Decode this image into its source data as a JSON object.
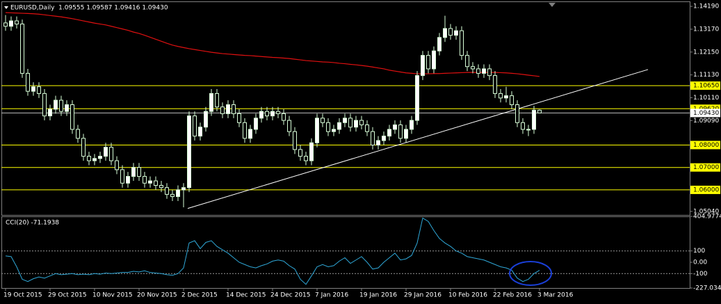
{
  "chart_data": [
    {
      "type": "candlestick",
      "title": "EURUSD,Daily  1.09555 1.09587 1.09416 1.09430",
      "categories": [
        "19 Oct 2015",
        null,
        null,
        null,
        null,
        null,
        null,
        null,
        "29 Oct 2015",
        null,
        null,
        null,
        null,
        null,
        null,
        null,
        "10 Nov 2015",
        null,
        null,
        null,
        null,
        null,
        null,
        null,
        "20 Nov 2015",
        null,
        null,
        null,
        null,
        null,
        null,
        null,
        "2 Dec 2015",
        null,
        null,
        null,
        null,
        null,
        null,
        null,
        "14 Dec 2015",
        null,
        null,
        null,
        null,
        null,
        null,
        null,
        "24 Dec 2015",
        null,
        null,
        null,
        null,
        null,
        null,
        null,
        "7 Jan 2016",
        null,
        null,
        null,
        null,
        null,
        null,
        null,
        "19 Jan 2016",
        null,
        null,
        null,
        null,
        null,
        null,
        null,
        "29 Jan 2016",
        null,
        null,
        null,
        null,
        null,
        null,
        null,
        "10 Feb 2016",
        null,
        null,
        null,
        null,
        null,
        null,
        null,
        "22 Feb 2016",
        null,
        null,
        null,
        null,
        null,
        null,
        null,
        "3 Mar 2016"
      ],
      "open": [
        1.1345,
        1.133,
        1.1354,
        1.134,
        1.112,
        1.104,
        1.106,
        1.103,
        1.093,
        1.096,
        1.1,
        1.095,
        1.098,
        1.087,
        1.083,
        1.075,
        1.073,
        1.074,
        1.075,
        1.079,
        1.073,
        1.069,
        1.063,
        1.066,
        1.07,
        1.066,
        1.063,
        1.064,
        1.062,
        1.061,
        1.058,
        1.057,
        1.06,
        1.061,
        1.093,
        1.084,
        1.088,
        1.095,
        1.103,
        1.097,
        1.094,
        1.098,
        1.094,
        1.09,
        1.083,
        1.087,
        1.092,
        1.095,
        1.093,
        1.095,
        1.094,
        1.091,
        1.086,
        1.078,
        1.075,
        1.073,
        1.081,
        1.092,
        1.09,
        1.086,
        1.087,
        1.09,
        1.092,
        1.088,
        1.091,
        1.089,
        1.086,
        1.08,
        1.082,
        1.084,
        1.087,
        1.089,
        1.083,
        1.087,
        1.091,
        1.111,
        1.12,
        1.114,
        1.122,
        1.128,
        1.132,
        1.129,
        1.131,
        1.12,
        1.115,
        1.114,
        1.112,
        1.114,
        1.111,
        1.103,
        1.101,
        1.102,
        1.098,
        1.09,
        1.087,
        1.087,
        1.09555
      ],
      "high": [
        1.138,
        1.1374,
        1.1374,
        1.136,
        1.114,
        1.108,
        1.108,
        1.105,
        1.098,
        1.102,
        1.102,
        1.1,
        1.1,
        1.089,
        1.085,
        1.077,
        1.076,
        1.077,
        1.081,
        1.081,
        1.075,
        1.071,
        1.068,
        1.072,
        1.072,
        1.068,
        1.066,
        1.066,
        1.064,
        1.063,
        1.06,
        1.062,
        1.063,
        1.095,
        1.095,
        1.09,
        1.097,
        1.105,
        1.105,
        1.099,
        1.1,
        1.1,
        1.096,
        1.092,
        1.089,
        1.094,
        1.097,
        1.097,
        1.097,
        1.097,
        1.096,
        1.093,
        1.088,
        1.08,
        1.077,
        1.083,
        1.094,
        1.094,
        1.092,
        1.089,
        1.092,
        1.094,
        1.094,
        1.093,
        1.093,
        1.091,
        1.088,
        1.084,
        1.086,
        1.089,
        1.091,
        1.091,
        1.089,
        1.093,
        1.113,
        1.122,
        1.122,
        1.124,
        1.13,
        1.1377,
        1.134,
        1.133,
        1.133,
        1.122,
        1.117,
        1.116,
        1.116,
        1.116,
        1.113,
        1.105,
        1.106,
        1.104,
        1.1,
        1.092,
        1.089,
        1.0975,
        1.09587
      ],
      "low": [
        1.131,
        1.131,
        1.132,
        1.11,
        1.102,
        1.102,
        1.101,
        1.091,
        1.091,
        1.094,
        1.093,
        1.093,
        1.085,
        1.081,
        1.073,
        1.071,
        1.071,
        1.072,
        1.073,
        1.071,
        1.067,
        1.061,
        1.061,
        1.064,
        1.064,
        1.061,
        1.061,
        1.06,
        1.059,
        1.056,
        1.055,
        1.055,
        1.0522,
        1.059,
        1.082,
        1.082,
        1.086,
        1.093,
        1.095,
        1.092,
        1.092,
        1.092,
        1.088,
        1.081,
        1.081,
        1.085,
        1.09,
        1.091,
        1.091,
        1.092,
        1.089,
        1.084,
        1.076,
        1.073,
        1.071,
        1.071,
        1.079,
        1.088,
        1.084,
        1.084,
        1.085,
        1.088,
        1.086,
        1.086,
        1.087,
        1.084,
        1.078,
        1.078,
        1.08,
        1.082,
        1.085,
        1.081,
        1.081,
        1.085,
        1.089,
        1.109,
        1.112,
        1.112,
        1.12,
        1.126,
        1.127,
        1.127,
        1.118,
        1.113,
        1.112,
        1.11,
        1.11,
        1.109,
        1.101,
        1.099,
        1.099,
        1.096,
        1.088,
        1.085,
        1.084,
        1.085,
        1.09416
      ],
      "close": [
        1.133,
        1.1354,
        1.134,
        1.112,
        1.104,
        1.106,
        1.103,
        1.093,
        1.096,
        1.1,
        1.095,
        1.098,
        1.087,
        1.083,
        1.075,
        1.073,
        1.074,
        1.075,
        1.079,
        1.073,
        1.069,
        1.063,
        1.066,
        1.07,
        1.066,
        1.063,
        1.064,
        1.062,
        1.061,
        1.058,
        1.057,
        1.06,
        1.061,
        1.093,
        1.084,
        1.088,
        1.095,
        1.103,
        1.097,
        1.094,
        1.098,
        1.094,
        1.09,
        1.083,
        1.087,
        1.092,
        1.095,
        1.093,
        1.095,
        1.094,
        1.091,
        1.086,
        1.078,
        1.075,
        1.073,
        1.081,
        1.092,
        1.09,
        1.086,
        1.087,
        1.09,
        1.092,
        1.088,
        1.091,
        1.089,
        1.086,
        1.08,
        1.082,
        1.084,
        1.087,
        1.089,
        1.083,
        1.087,
        1.091,
        1.111,
        1.12,
        1.114,
        1.122,
        1.128,
        1.132,
        1.129,
        1.131,
        1.12,
        1.115,
        1.114,
        1.112,
        1.114,
        1.111,
        1.103,
        1.101,
        1.102,
        1.098,
        1.09,
        1.087,
        1.087,
        1.09555,
        1.0943
      ],
      "bull_color": "#ffffff",
      "bear_color": "#000000",
      "wick_color": "#d8ffd8",
      "moving_average": {
        "color": "#e01010",
        "values": [
          1.1391,
          1.139,
          1.1389,
          1.1388,
          1.1387,
          1.1386,
          1.1384,
          1.1381,
          1.1378,
          1.1375,
          1.1372,
          1.1368,
          1.1364,
          1.1359,
          1.1354,
          1.1349,
          1.1344,
          1.134,
          1.1336,
          1.133,
          1.1324,
          1.1318,
          1.1312,
          1.1304,
          1.1298,
          1.129,
          1.1281,
          1.1272,
          1.1263,
          1.1254,
          1.1246,
          1.124,
          1.1235,
          1.123,
          1.1226,
          1.1222,
          1.1218,
          1.1214,
          1.1211,
          1.1208,
          1.1206,
          1.1204,
          1.1202,
          1.12,
          1.1199,
          1.1197,
          1.1195,
          1.1193,
          1.1191,
          1.119,
          1.1188,
          1.1186,
          1.1183,
          1.118,
          1.1177,
          1.1175,
          1.1173,
          1.1171,
          1.117,
          1.1168,
          1.1165,
          1.1163,
          1.116,
          1.1158,
          1.1155,
          1.1152,
          1.1148,
          1.1144,
          1.114,
          1.1134,
          1.113,
          1.1126,
          1.1122,
          1.112,
          1.1118,
          1.1118,
          1.1118,
          1.1119,
          1.1119,
          1.112,
          1.1121,
          1.1122,
          1.1123,
          1.1124,
          1.1124,
          1.1124,
          1.1124,
          1.1124,
          1.1124,
          1.1123,
          1.1122,
          1.112,
          1.1118,
          1.1115,
          1.1112,
          1.1109,
          1.1106
        ]
      },
      "trendline": {
        "color": "#ffffff",
        "x": [
          32.75,
          115.5
        ],
        "y": [
          1.0517,
          1.1137
        ]
      },
      "levels": [
        {
          "value": 1.1065,
          "label": "1.10650",
          "color": "#ffff00"
        },
        {
          "value": 1.0962,
          "label": "1.09620",
          "color": "#ffff00"
        },
        {
          "value": 1.08,
          "label": "1.08000",
          "color": "#ffff00"
        },
        {
          "value": 1.07,
          "label": "1.07000",
          "color": "#ffff00"
        },
        {
          "value": 1.06,
          "label": "1.06000",
          "color": "#ffff00"
        }
      ],
      "bid": {
        "value": 1.0943,
        "label": "1.09430",
        "color": "#c0c0c0"
      },
      "ylim": [
        1.0488,
        1.1441
      ],
      "yticks": [
        {
          "value": 1.1419,
          "label": "1.14190"
        },
        {
          "value": 1.1317,
          "label": "1.13170"
        },
        {
          "value": 1.1215,
          "label": "1.12150"
        },
        {
          "value": 1.1113,
          "label": "1.11130"
        },
        {
          "value": 1.1011,
          "label": "1.10110"
        },
        {
          "value": 1.0909,
          "label": "1.09090"
        },
        {
          "value": 1.0504,
          "label": "1.05040"
        }
      ],
      "grid": false
    },
    {
      "type": "line",
      "title": "CCI(20) -71.1938",
      "color": "#2fa8d8",
      "values": [
        56,
        50,
        -40,
        -150,
        -170,
        -145,
        -130,
        -140,
        -120,
        -100,
        -110,
        -105,
        -100,
        -110,
        -105,
        -110,
        -100,
        -105,
        -95,
        -100,
        -95,
        -90,
        -90,
        -80,
        -85,
        -75,
        -90,
        -95,
        -100,
        -110,
        -115,
        -100,
        -50,
        170,
        190,
        120,
        175,
        190,
        140,
        110,
        80,
        40,
        0,
        -20,
        -40,
        -50,
        -30,
        -15,
        10,
        20,
        10,
        -30,
        -60,
        -150,
        -195,
        -120,
        -40,
        -20,
        -40,
        -30,
        10,
        40,
        -10,
        20,
        50,
        0,
        -60,
        -50,
        0,
        40,
        80,
        20,
        30,
        60,
        170,
        390,
        360,
        280,
        210,
        170,
        140,
        100,
        80,
        50,
        40,
        30,
        20,
        0,
        -20,
        -40,
        -50,
        -70,
        -140,
        -170,
        -150,
        -100,
        -71.1938
      ],
      "levels": [
        100,
        -100
      ],
      "ylim": [
        -227.0348,
        404.9774
      ],
      "yticks": [
        404.9774,
        100,
        {
          "value": 0,
          "label": "0.00"
        },
        -100,
        -227.0348
      ]
    }
  ]
}
